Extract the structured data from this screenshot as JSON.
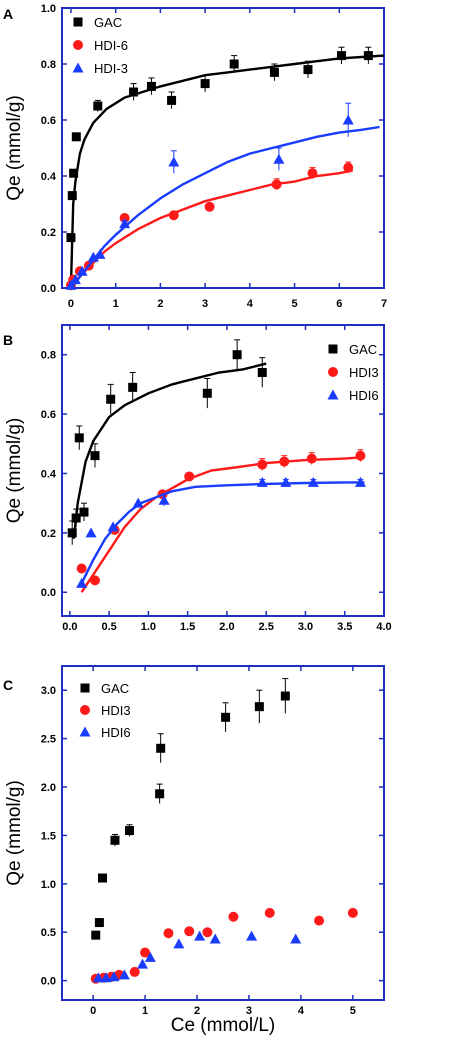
{
  "colors": {
    "axis": "#1f2fbf",
    "GAC": "#000000",
    "red": "#ff1a1a",
    "blue": "#1a3cff"
  },
  "chart_data": [
    {
      "type": "scatter",
      "panel": "A",
      "ylabel": "Qe (mmol/g)",
      "xlim": [
        -0.2,
        7
      ],
      "ylim": [
        0,
        1.0
      ],
      "xticks": [
        "0",
        "1",
        "2",
        "3",
        "4",
        "5",
        "6",
        "7"
      ],
      "yticks": [
        "0.0",
        "0.2",
        "0.4",
        "0.6",
        "0.8",
        "1.0"
      ],
      "legend_position": "top-left",
      "series": [
        {
          "name": "GAC",
          "marker": "square",
          "color": "#000000",
          "x": [
            0.0,
            0.03,
            0.06,
            0.12,
            0.6,
            1.4,
            1.8,
            2.25,
            3.0,
            3.65,
            4.55,
            5.3,
            6.05,
            6.65
          ],
          "y": [
            0.18,
            0.33,
            0.41,
            0.54,
            0.65,
            0.7,
            0.72,
            0.67,
            0.73,
            0.8,
            0.77,
            0.78,
            0.83,
            0.83
          ],
          "err": [
            0,
            0.01,
            0.01,
            0.01,
            0.02,
            0.03,
            0.03,
            0.03,
            0.03,
            0.03,
            0.03,
            0.03,
            0.03,
            0.03
          ],
          "fit_x": [
            0.0,
            0.05,
            0.1,
            0.2,
            0.3,
            0.5,
            0.8,
            1.2,
            1.6,
            2,
            2.5,
            3,
            3.5,
            4,
            4.5,
            5,
            5.5,
            6,
            6.5,
            7
          ],
          "fit_y": [
            0.0,
            0.3,
            0.38,
            0.48,
            0.53,
            0.59,
            0.64,
            0.68,
            0.7,
            0.72,
            0.74,
            0.76,
            0.77,
            0.78,
            0.79,
            0.8,
            0.81,
            0.82,
            0.825,
            0.83
          ]
        },
        {
          "name": "HDI-6",
          "marker": "circle",
          "color": "#ff1a1a",
          "x": [
            0.0,
            0.05,
            0.2,
            0.4,
            1.2,
            2.3,
            3.1,
            4.6,
            5.4,
            6.2
          ],
          "y": [
            0.01,
            0.03,
            0.06,
            0.08,
            0.25,
            0.26,
            0.29,
            0.37,
            0.41,
            0.43
          ],
          "err": [
            0,
            0,
            0,
            0,
            0.01,
            0.01,
            0.01,
            0.02,
            0.02,
            0.02
          ],
          "fit_x": [
            0.0,
            0.25,
            0.5,
            0.75,
            1,
            1.5,
            2,
            2.5,
            3,
            3.5,
            4,
            4.5,
            5,
            5.5,
            6,
            6.3
          ],
          "fit_y": [
            0.0,
            0.05,
            0.09,
            0.13,
            0.16,
            0.21,
            0.25,
            0.28,
            0.31,
            0.33,
            0.35,
            0.37,
            0.38,
            0.4,
            0.41,
            0.42
          ]
        },
        {
          "name": "HDI-3",
          "marker": "triangle",
          "color": "#1a3cff",
          "x": [
            0.0,
            0.1,
            0.25,
            0.5,
            0.65,
            1.2,
            2.3,
            4.65,
            6.2
          ],
          "y": [
            0.01,
            0.03,
            0.06,
            0.11,
            0.12,
            0.23,
            0.45,
            0.46,
            0.6
          ],
          "err": [
            0,
            0,
            0,
            0,
            0,
            0.01,
            0.04,
            0.04,
            0.06
          ],
          "fit_x": [
            0.0,
            0.25,
            0.5,
            0.75,
            1,
            1.5,
            2,
            2.5,
            3,
            3.5,
            4,
            4.5,
            5,
            5.5,
            6,
            6.5,
            6.9
          ],
          "fit_y": [
            0.0,
            0.05,
            0.1,
            0.15,
            0.19,
            0.26,
            0.32,
            0.37,
            0.41,
            0.45,
            0.48,
            0.5,
            0.52,
            0.54,
            0.555,
            0.565,
            0.575
          ]
        }
      ]
    },
    {
      "type": "scatter",
      "panel": "B",
      "ylabel": "Qe (mmol/g)",
      "xlim": [
        -0.1,
        4.0
      ],
      "ylim": [
        -0.08,
        0.9
      ],
      "xticks": [
        "0.0",
        "0.5",
        "1.0",
        "1.5",
        "2.0",
        "2.5",
        "3.0",
        "3.5",
        "4.0"
      ],
      "yticks": [
        "0.0",
        "0.2",
        "0.4",
        "0.6",
        "0.8"
      ],
      "legend_position": "top-right",
      "series": [
        {
          "name": "GAC",
          "marker": "square",
          "color": "#000000",
          "x": [
            0.03,
            0.08,
            0.12,
            0.18,
            0.32,
            0.52,
            0.8,
            1.75,
            2.13,
            2.45
          ],
          "y": [
            0.2,
            0.25,
            0.52,
            0.27,
            0.46,
            0.65,
            0.69,
            0.67,
            0.8,
            0.74
          ],
          "err": [
            0.04,
            0.03,
            0.04,
            0.03,
            0.04,
            0.05,
            0.05,
            0.05,
            0.05,
            0.05
          ],
          "fit_x": [
            0.05,
            0.1,
            0.2,
            0.3,
            0.5,
            0.7,
            1.0,
            1.3,
            1.6,
            1.9,
            2.2,
            2.5
          ],
          "fit_y": [
            0.18,
            0.3,
            0.44,
            0.51,
            0.59,
            0.63,
            0.67,
            0.7,
            0.72,
            0.74,
            0.75,
            0.77
          ]
        },
        {
          "name": "HDI3",
          "marker": "circle",
          "color": "#ff1a1a",
          "x": [
            0.15,
            0.32,
            0.57,
            1.18,
            1.52,
            2.45,
            2.73,
            3.08,
            3.7
          ],
          "y": [
            0.08,
            0.04,
            0.21,
            0.33,
            0.39,
            0.43,
            0.44,
            0.45,
            0.46
          ],
          "err": [
            0,
            0,
            0,
            0,
            0,
            0.02,
            0.02,
            0.02,
            0.02
          ],
          "fit_x": [
            0.15,
            0.3,
            0.5,
            0.7,
            0.9,
            1.1,
            1.3,
            1.5,
            1.8,
            2.1,
            2.5,
            3.0,
            3.5,
            3.75
          ],
          "fit_y": [
            0.0,
            0.06,
            0.14,
            0.22,
            0.28,
            0.32,
            0.35,
            0.38,
            0.41,
            0.42,
            0.435,
            0.445,
            0.45,
            0.455
          ]
        },
        {
          "name": "HDI6",
          "marker": "triangle",
          "color": "#1a3cff",
          "x": [
            0.15,
            0.27,
            0.55,
            0.87,
            1.2,
            2.45,
            2.75,
            3.1,
            3.7
          ],
          "y": [
            0.03,
            0.2,
            0.22,
            0.3,
            0.31,
            0.37,
            0.37,
            0.37,
            0.37
          ],
          "err": [
            0,
            0,
            0,
            0,
            0.02,
            0.01,
            0.01,
            0.01,
            0.01
          ],
          "fit_x": [
            0.15,
            0.3,
            0.45,
            0.6,
            0.75,
            0.9,
            1.1,
            1.3,
            1.6,
            2.0,
            2.5,
            3.0,
            3.5,
            3.75
          ],
          "fit_y": [
            0.03,
            0.11,
            0.18,
            0.23,
            0.27,
            0.3,
            0.32,
            0.34,
            0.355,
            0.36,
            0.365,
            0.368,
            0.37,
            0.37
          ]
        }
      ]
    },
    {
      "type": "scatter",
      "panel": "C",
      "ylabel": "Qe (mmol/g)",
      "xlabel": "Ce (mmol/L)",
      "xlim": [
        -0.6,
        5.6
      ],
      "ylim": [
        -0.2,
        3.25
      ],
      "xticks": [
        "0",
        "1",
        "2",
        "3",
        "4",
        "5"
      ],
      "yticks": [
        "0.0",
        "0.5",
        "1.0",
        "1.5",
        "2.0",
        "2.5",
        "3.0"
      ],
      "legend_position": "top-left",
      "series": [
        {
          "name": "GAC",
          "marker": "square",
          "color": "#000000",
          "x": [
            0.05,
            0.12,
            0.18,
            0.42,
            0.7,
            1.28,
            1.3,
            2.55,
            3.2,
            3.7
          ],
          "y": [
            0.47,
            0.6,
            1.06,
            1.45,
            1.55,
            1.93,
            2.4,
            2.72,
            2.83,
            2.94
          ],
          "err": [
            0,
            0,
            0,
            0.06,
            0.06,
            0.1,
            0.15,
            0.15,
            0.17,
            0.18
          ]
        },
        {
          "name": "HDI3",
          "marker": "circle",
          "color": "#ff1a1a",
          "x": [
            0.05,
            0.2,
            0.35,
            0.5,
            0.8,
            1.0,
            1.45,
            1.85,
            2.2,
            2.7,
            3.4,
            4.35,
            5.0
          ],
          "y": [
            0.02,
            0.03,
            0.04,
            0.06,
            0.09,
            0.29,
            0.49,
            0.51,
            0.5,
            0.66,
            0.7,
            0.62,
            0.7
          ]
        },
        {
          "name": "HDI6",
          "marker": "triangle",
          "color": "#1a3cff",
          "x": [
            0.1,
            0.25,
            0.4,
            0.6,
            0.95,
            1.1,
            1.65,
            2.05,
            2.35,
            3.05,
            3.9
          ],
          "y": [
            0.03,
            0.03,
            0.04,
            0.06,
            0.17,
            0.24,
            0.38,
            0.46,
            0.43,
            0.46,
            0.43
          ]
        }
      ]
    }
  ]
}
